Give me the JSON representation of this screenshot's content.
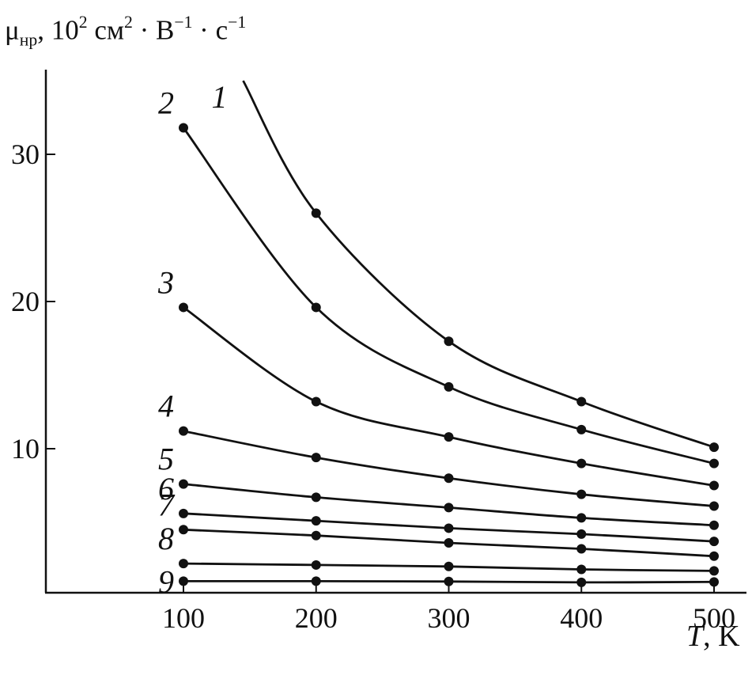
{
  "chart_data": {
    "type": "line",
    "ylabel": {
      "symbol": "μ",
      "symbol_sub": "нр",
      "sep": ", ",
      "base": "10",
      "base_exp": "2",
      "unit1": " см",
      "unit1_exp": "2",
      "dot1": " · В",
      "unit2_exp": "−1",
      "dot2": " · с",
      "unit3_exp": "−1"
    },
    "xlabel": {
      "var": "T",
      "unit": ", K"
    },
    "x_ticks": [
      100,
      200,
      300,
      400,
      500
    ],
    "y_ticks": [
      10,
      20,
      30
    ],
    "xlim": [
      0,
      520
    ],
    "ylim": [
      0,
      35
    ],
    "grid": false,
    "legend": "inline labels at left end of curves",
    "color": "#111111",
    "series": [
      {
        "name": "1",
        "x": [
          145,
          200,
          300,
          400,
          500
        ],
        "y": [
          35,
          26.0,
          17.3,
          13.2,
          10.1
        ],
        "markers_from": 1
      },
      {
        "name": "2",
        "x": [
          100,
          200,
          300,
          400,
          500
        ],
        "y": [
          31.8,
          19.6,
          14.2,
          11.3,
          9.0
        ]
      },
      {
        "name": "3",
        "x": [
          100,
          200,
          300,
          400,
          500
        ],
        "y": [
          19.6,
          13.2,
          10.8,
          9.0,
          7.5
        ]
      },
      {
        "name": "4",
        "x": [
          100,
          200,
          300,
          400,
          500
        ],
        "y": [
          11.2,
          9.4,
          8.0,
          6.9,
          6.1
        ]
      },
      {
        "name": "5",
        "x": [
          100,
          200,
          300,
          400,
          500
        ],
        "y": [
          7.6,
          6.7,
          6.0,
          5.3,
          4.8
        ]
      },
      {
        "name": "6",
        "x": [
          100,
          200,
          300,
          400,
          500
        ],
        "y": [
          5.6,
          5.1,
          4.6,
          4.2,
          3.7
        ]
      },
      {
        "name": "7",
        "x": [
          100,
          200,
          300,
          400,
          500
        ],
        "y": [
          4.5,
          4.1,
          3.6,
          3.2,
          2.7
        ]
      },
      {
        "name": "8",
        "x": [
          100,
          200,
          300,
          400,
          500
        ],
        "y": [
          2.2,
          2.1,
          2.0,
          1.8,
          1.7
        ]
      },
      {
        "name": "9",
        "x": [
          100,
          200,
          300,
          400,
          500
        ],
        "y": [
          1.0,
          1.0,
          0.98,
          0.92,
          0.95
        ]
      }
    ]
  }
}
